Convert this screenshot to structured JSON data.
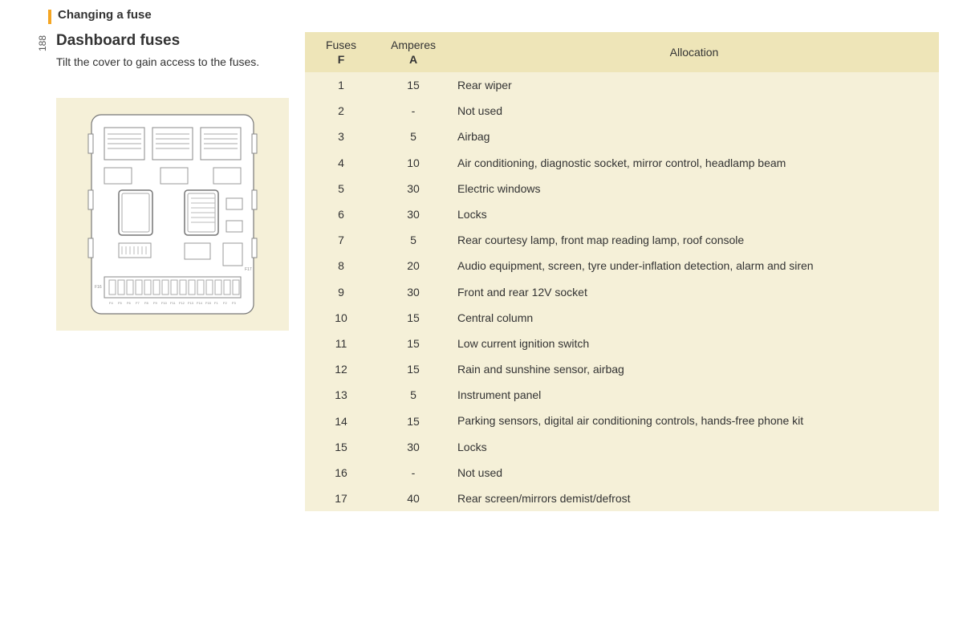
{
  "page_number": "188",
  "section_title": "Changing a fuse",
  "subtitle": "Dashboard fuses",
  "description": "Tilt the cover to gain access to the fuses.",
  "table": {
    "header": {
      "fuses_label": "Fuses",
      "fuses_sub": "F",
      "amperes_label": "Amperes",
      "amperes_sub": "A",
      "allocation_label": "Allocation"
    },
    "rows": [
      {
        "fuse": "1",
        "amp": "15",
        "allocation": "Rear wiper"
      },
      {
        "fuse": "2",
        "amp": "-",
        "allocation": "Not used"
      },
      {
        "fuse": "3",
        "amp": "5",
        "allocation": "Airbag"
      },
      {
        "fuse": "4",
        "amp": "10",
        "allocation": "Air conditioning, diagnostic socket, mirror control, headlamp beam"
      },
      {
        "fuse": "5",
        "amp": "30",
        "allocation": "Electric windows"
      },
      {
        "fuse": "6",
        "amp": "30",
        "allocation": "Locks"
      },
      {
        "fuse": "7",
        "amp": "5",
        "allocation": "Rear courtesy lamp, front map reading lamp, roof console"
      },
      {
        "fuse": "8",
        "amp": "20",
        "allocation": "Audio equipment, screen, tyre under-inflation detection, alarm and siren"
      },
      {
        "fuse": "9",
        "amp": "30",
        "allocation": "Front and rear 12V socket"
      },
      {
        "fuse": "10",
        "amp": "15",
        "allocation": "Central column"
      },
      {
        "fuse": "11",
        "amp": "15",
        "allocation": "Low current ignition switch"
      },
      {
        "fuse": "12",
        "amp": "15",
        "allocation": "Rain and sunshine sensor, airbag"
      },
      {
        "fuse": "13",
        "amp": "5",
        "allocation": "Instrument panel"
      },
      {
        "fuse": "14",
        "amp": "15",
        "allocation": "Parking sensors, digital air conditioning controls, hands-free phone kit"
      },
      {
        "fuse": "15",
        "amp": "30",
        "allocation": "Locks"
      },
      {
        "fuse": "16",
        "amp": "-",
        "allocation": "Not used"
      },
      {
        "fuse": "17",
        "amp": "40",
        "allocation": "Rear screen/mirrors demist/defrost"
      }
    ]
  },
  "colors": {
    "header_bg": "#eee5b8",
    "row_bg": "#f5f0d8",
    "diagram_bg": "#f5f0d8",
    "accent": "#f5a623",
    "text": "#333333"
  },
  "typography": {
    "section_title_size": 15,
    "subtitle_size": 19,
    "body_size": 14
  }
}
